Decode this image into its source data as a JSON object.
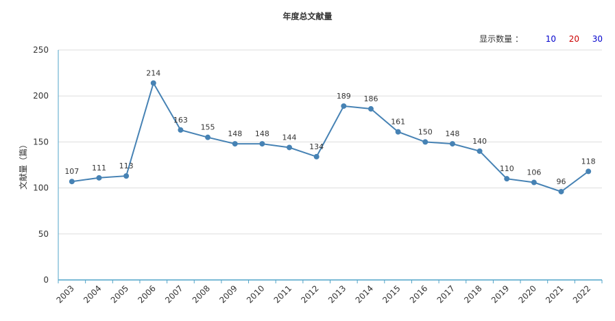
{
  "chart_data": {
    "type": "line",
    "title": "年度总文献量",
    "ylabel": "文献量（篇）",
    "xlabel": "",
    "ylim": [
      0,
      250
    ],
    "yticks": [
      0,
      50,
      100,
      150,
      200,
      250
    ],
    "grid": true,
    "categories": [
      "2003",
      "2004",
      "2005",
      "2006",
      "2007",
      "2008",
      "2009",
      "2010",
      "2011",
      "2012",
      "2013",
      "2014",
      "2015",
      "2016",
      "2017",
      "2018",
      "2019",
      "2020",
      "2021",
      "2022"
    ],
    "series": [
      {
        "values": [
          107,
          111,
          113,
          214,
          163,
          155,
          148,
          148,
          144,
          134,
          189,
          186,
          161,
          150,
          148,
          140,
          110,
          106,
          96,
          118
        ]
      }
    ],
    "line_color": "#4682B4"
  },
  "display_count": {
    "label": "显示数量 ：",
    "options": [
      {
        "label": "10",
        "color": "#0000CC"
      },
      {
        "label": "20",
        "color": "#CC0000"
      },
      {
        "label": "30",
        "color": "#0000CC"
      }
    ]
  }
}
